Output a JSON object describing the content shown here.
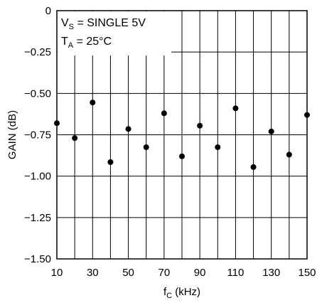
{
  "chart_data": {
    "type": "scatter",
    "xlabel": {
      "main": "f",
      "sub": "C",
      "rest": " (kHz)"
    },
    "ylabel": "GAIN (dB)",
    "xlim": [
      10,
      150
    ],
    "ylim": [
      -1.5,
      0
    ],
    "grid": true,
    "x_ticks": [
      10,
      30,
      50,
      70,
      90,
      110,
      130,
      150
    ],
    "x_tick_labels": [
      "10",
      "30",
      "50",
      "70",
      "90",
      "110",
      "130",
      "150"
    ],
    "x_grid_step": 10,
    "y_ticks": [
      0,
      -0.25,
      -0.5,
      -0.75,
      -1.0,
      -1.25,
      -1.5
    ],
    "y_tick_labels": [
      "0",
      "−0.25",
      "−0.50",
      "−0.75",
      "−1.00",
      "−1.25",
      "−1.50"
    ],
    "annotations": [
      {
        "main": "V",
        "sub": "S",
        "rest": " = SINGLE 5V"
      },
      {
        "main": "T",
        "sub": "A",
        "rest": " = 25°C"
      }
    ],
    "series": [
      {
        "points": [
          {
            "x": 10,
            "y": -0.68
          },
          {
            "x": 20,
            "y": -0.77
          },
          {
            "x": 30,
            "y": -0.555
          },
          {
            "x": 40,
            "y": -0.915
          },
          {
            "x": 50,
            "y": -0.715
          },
          {
            "x": 60,
            "y": -0.825
          },
          {
            "x": 70,
            "y": -0.62
          },
          {
            "x": 80,
            "y": -0.88
          },
          {
            "x": 90,
            "y": -0.695
          },
          {
            "x": 100,
            "y": -0.825
          },
          {
            "x": 110,
            "y": -0.59
          },
          {
            "x": 120,
            "y": -0.945
          },
          {
            "x": 130,
            "y": -0.73
          },
          {
            "x": 140,
            "y": -0.87
          },
          {
            "x": 150,
            "y": -0.63
          }
        ]
      }
    ],
    "colors": {
      "marker": "#000000",
      "grid": "#000000"
    }
  }
}
